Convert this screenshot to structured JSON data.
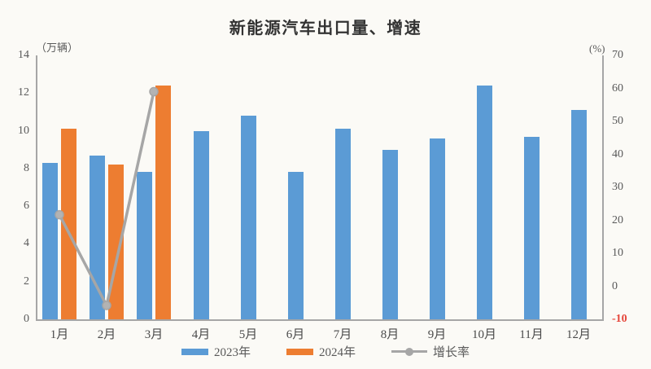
{
  "title": "新能源汽车出口量、增速",
  "chart_data": {
    "type": "bar",
    "title": "新能源汽车出口量、增速",
    "categories": [
      "1月",
      "2月",
      "3月",
      "4月",
      "5月",
      "6月",
      "7月",
      "8月",
      "9月",
      "10月",
      "11月",
      "12月"
    ],
    "series": [
      {
        "name": "2023年",
        "type": "bar",
        "axis": "left",
        "color": "#5b9bd5",
        "values": [
          8.3,
          8.7,
          7.8,
          10.0,
          10.8,
          7.8,
          10.1,
          9.0,
          9.6,
          12.4,
          9.7,
          11.1
        ]
      },
      {
        "name": "2024年",
        "type": "bar",
        "axis": "left",
        "color": "#ed7d31",
        "values": [
          10.1,
          8.2,
          12.4,
          null,
          null,
          null,
          null,
          null,
          null,
          null,
          null,
          null
        ]
      },
      {
        "name": "增长率",
        "type": "line",
        "axis": "right",
        "color": "#a6a6a6",
        "values": [
          21.7,
          -5.8,
          59.0,
          null,
          null,
          null,
          null,
          null,
          null,
          null,
          null,
          null
        ]
      }
    ],
    "left_axis": {
      "label": "（万辆）",
      "min": 0,
      "max": 14,
      "step": 2
    },
    "right_axis": {
      "label": "(%)",
      "min": -10,
      "max": 70,
      "step": 10,
      "highlight_tick": -10,
      "highlight_color": "#e5453a"
    },
    "legend_position": "bottom",
    "grid": false
  },
  "colors": {
    "background": "#fbfaf6",
    "bar_2023": "#5b9bd5",
    "bar_2024": "#ed7d31",
    "growth_line": "#a6a6a6",
    "axis": "#a6a6a6",
    "tick_text": "#595959",
    "negative_tick": "#e5453a",
    "title_text": "#333333"
  }
}
